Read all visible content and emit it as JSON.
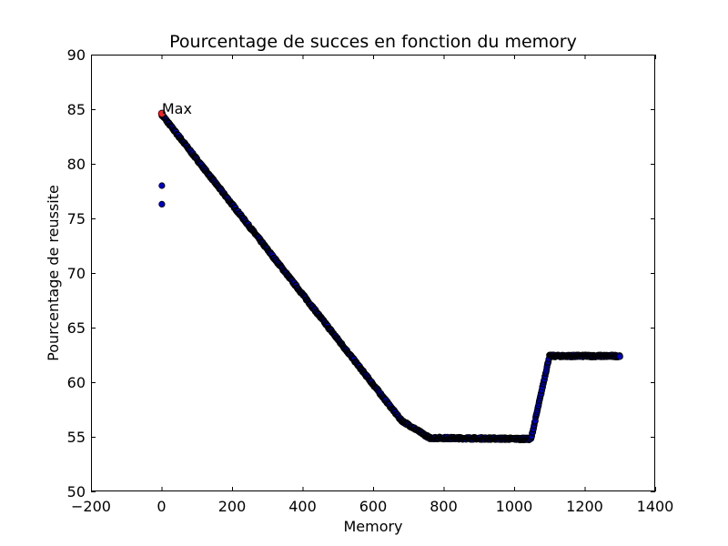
{
  "chart_data": {
    "type": "scatter",
    "title": "Pourcentage de succes en fonction du memory",
    "xlabel": "Memory",
    "ylabel": "Pourcentage de reussite",
    "xlim": [
      -200,
      1400
    ],
    "ylim": [
      50,
      90
    ],
    "xticks": [
      -200,
      0,
      200,
      400,
      600,
      800,
      1000,
      1200,
      1400
    ],
    "xtick_labels": [
      "−200",
      "0",
      "200",
      "400",
      "600",
      "800",
      "1000",
      "1200",
      "1400"
    ],
    "yticks": [
      50,
      55,
      60,
      65,
      70,
      75,
      80,
      85,
      90
    ],
    "ytick_labels": [
      "50",
      "55",
      "60",
      "65",
      "70",
      "75",
      "80",
      "85",
      "90"
    ],
    "grid": false,
    "legend": null,
    "colors": {
      "point_fill": "#0000bf",
      "point_edge": "#000000",
      "max_fill": "#e8262a"
    },
    "series": [
      {
        "marker": "circle",
        "x_range": [
          1,
          1300
        ],
        "x_step": 1,
        "y_breakpoints": {
          "x": [
            1,
            680,
            760,
            1048,
            1100,
            1300
          ],
          "y": [
            84.5,
            56.5,
            54.9,
            54.8,
            62.4,
            62.4
          ]
        },
        "y_jitter": 0.1,
        "outliers": [
          {
            "x": 1,
            "y": 78.0
          },
          {
            "x": 1,
            "y": 76.3
          }
        ]
      }
    ],
    "max_point": {
      "x": 1,
      "y": 84.6,
      "label": "Max"
    }
  }
}
